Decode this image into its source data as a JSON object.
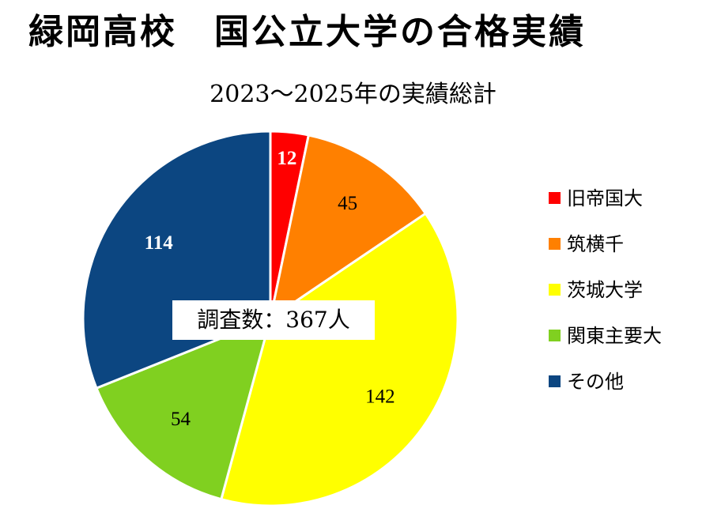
{
  "chart_data": {
    "type": "pie",
    "title": "緑岡高校　国公立大学の合格実績",
    "subtitle": "2023～2025年の実績総計",
    "center_label": "調査数：367人",
    "categories": [
      "旧帝国大",
      "筑横千",
      "茨城大学",
      "関東主要大",
      "その他"
    ],
    "values": [
      12,
      45,
      142,
      54,
      114
    ],
    "colors": [
      "#ff0000",
      "#ff8000",
      "#ffff00",
      "#80d020",
      "#0c4681"
    ],
    "label_colors": [
      "#ffffff",
      "#000000",
      "#000000",
      "#000000",
      "#ffffff"
    ],
    "label_bold": [
      true,
      false,
      false,
      false,
      true
    ],
    "start_angle_deg": 0,
    "direction": "clockwise",
    "legend_position": "right"
  }
}
